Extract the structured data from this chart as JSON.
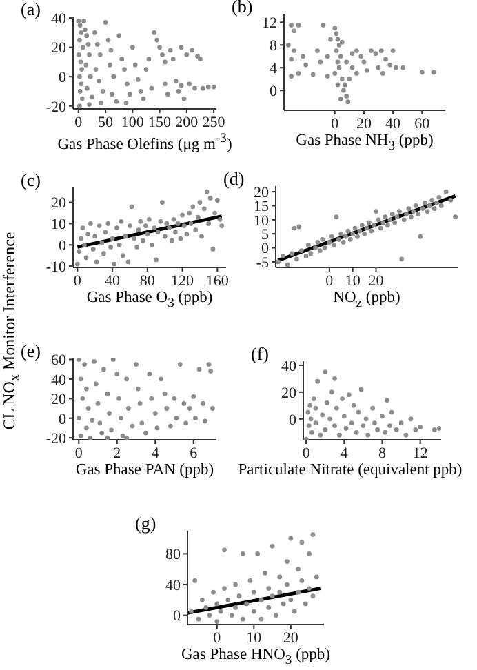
{
  "chart_data": [
    {
      "type": "scatter",
      "title": "(a)",
      "xlabel": "Gas Phase Olefins (μg m$^{-3}$)",
      "xlim": [
        -10,
        255
      ],
      "xticks": [
        0,
        50,
        100,
        150,
        200,
        250
      ],
      "ylim": [
        -22,
        41
      ],
      "yticks": [
        -20,
        0,
        20,
        40
      ],
      "grid": false,
      "legend": false,
      "marker": "circle",
      "series": [
        {
          "color": "#8c8c8c",
          "x": [
            0,
            3,
            5,
            2,
            8,
            1,
            4,
            6,
            2,
            5,
            3,
            7,
            2,
            10,
            12,
            15,
            18,
            20,
            14,
            22,
            16,
            25,
            20,
            30,
            35,
            40,
            32,
            38,
            45,
            42,
            50,
            55,
            60,
            58,
            65,
            62,
            70,
            75,
            80,
            85,
            90,
            95,
            88,
            100,
            105,
            110,
            115,
            120,
            125,
            135,
            140,
            145,
            150,
            155,
            160,
            165,
            170,
            175,
            180,
            185,
            190,
            195,
            200,
            205,
            210,
            215,
            220,
            225,
            230,
            240,
            250,
            130,
            160,
            190
          ],
          "values": [
            38,
            35,
            30,
            25,
            20,
            15,
            10,
            5,
            0,
            -5,
            -10,
            -15,
            -20,
            38,
            32,
            28,
            22,
            15,
            8,
            0,
            -8,
            -14,
            -19,
            30,
            22,
            15,
            5,
            -3,
            -10,
            -18,
            37,
            25,
            18,
            8,
            0,
            -12,
            -17,
            28,
            12,
            5,
            -5,
            -12,
            -18,
            20,
            8,
            -2,
            -10,
            -15,
            5,
            -8,
            30,
            25,
            20,
            15,
            -5,
            -12,
            18,
            12,
            -3,
            -10,
            20,
            -15,
            15,
            -5,
            18,
            -8,
            14,
            12,
            -8,
            -7,
            -7,
            12,
            10,
            -6
          ]
        }
      ]
    },
    {
      "type": "scatter",
      "title": "(b)",
      "xlabel": "Gas Phase NH$_{3}$ (ppb)",
      "xlim": [
        -35,
        76
      ],
      "xticks": [
        0,
        20,
        40,
        60
      ],
      "ylim": [
        -3.5,
        13.5
      ],
      "yticks": [
        0,
        4,
        8,
        12
      ],
      "grid": false,
      "legend": false,
      "marker": "circle",
      "series": [
        {
          "color": "#8c8c8c",
          "x": [
            -30,
            -28,
            -25,
            -32,
            -28,
            -22,
            -30,
            -20,
            -25,
            -30,
            -15,
            -10,
            -12,
            -8,
            -5,
            -5,
            -3,
            0,
            1,
            2,
            3,
            1,
            4,
            2,
            3,
            0,
            5,
            2,
            6,
            8,
            9,
            4,
            7,
            10,
            5,
            8,
            12,
            15,
            18,
            20,
            22,
            25,
            28,
            30,
            32,
            35,
            33,
            38,
            40,
            42,
            47,
            60,
            68,
            12,
            15
          ],
          "values": [
            11.5,
            10.5,
            11.5,
            8,
            7,
            6,
            5.5,
            4.5,
            3,
            2.5,
            2.8,
            5,
            7,
            11.5,
            6,
            2.5,
            9,
            11,
            10,
            9,
            8,
            7,
            6,
            5,
            4,
            3,
            2,
            1,
            0,
            -1,
            -2,
            -1.5,
            1,
            2,
            8.5,
            5,
            6.5,
            7,
            6,
            5,
            3.5,
            7,
            6.5,
            4,
            7,
            5.5,
            3,
            4.5,
            7,
            4,
            4,
            3.2,
            3.2,
            4,
            3
          ]
        }
      ]
    },
    {
      "type": "scatter",
      "title": "(c)",
      "xlabel": "Gas Phase O$_{3}$ (ppb)",
      "ylabel": "CL NO$_{x}$ Monitor Interference",
      "xlim": [
        -5,
        170
      ],
      "xticks": [
        0,
        40,
        80,
        120,
        160
      ],
      "ylim": [
        -10.6,
        27
      ],
      "yticks": [
        -10,
        0,
        10,
        20
      ],
      "grid": false,
      "legend": false,
      "marker": "circle",
      "series": [
        {
          "color": "#8c8c8c",
          "x": [
            0,
            2,
            4,
            6,
            8,
            10,
            12,
            15,
            18,
            20,
            22,
            25,
            28,
            30,
            32,
            35,
            38,
            40,
            42,
            45,
            48,
            50,
            52,
            55,
            58,
            60,
            62,
            65,
            68,
            70,
            72,
            75,
            78,
            80,
            82,
            85,
            88,
            90,
            92,
            95,
            97,
            100,
            102,
            105,
            108,
            110,
            112,
            115,
            118,
            120,
            122,
            125,
            128,
            130,
            132,
            135,
            138,
            140,
            142,
            145,
            148,
            150,
            152,
            155,
            157,
            160,
            163,
            165
          ],
          "values": [
            -9,
            -3,
            3,
            8,
            0,
            -6,
            5,
            10,
            -2,
            4,
            -8,
            9,
            1,
            -4,
            6,
            10,
            -1,
            3,
            -9,
            8,
            0,
            11,
            -5,
            4,
            -8,
            9,
            18,
            3,
            -1,
            7,
            11,
            2,
            9,
            5,
            12,
            0,
            8,
            -7,
            6,
            11,
            20,
            4,
            10,
            8,
            2,
            12,
            6,
            10,
            3,
            14,
            9,
            5,
            15,
            10,
            18,
            7,
            13,
            20,
            4,
            17,
            25,
            10,
            22,
            -2,
            15,
            21,
            12,
            9
          ]
        },
        {
          "type": "line",
          "color": "#000000",
          "marker": "none",
          "x": [
            0,
            165
          ],
          "values": [
            -1,
            13.5
          ]
        }
      ]
    },
    {
      "type": "scatter",
      "title": "(d)",
      "xlabel": "NO$_{z}$ (ppb)",
      "xlim": [
        -23,
        55
      ],
      "xticks": [
        0,
        10,
        20
      ],
      "ylim": [
        -7,
        22
      ],
      "yticks": [
        -5,
        0,
        5,
        10,
        15,
        20
      ],
      "grid": false,
      "legend": false,
      "marker": "circle",
      "series": [
        {
          "color": "#8c8c8c",
          "x": [
            -22,
            -20,
            -18,
            -16,
            -15,
            -13,
            -14,
            -12,
            -10,
            -9,
            -8,
            -6,
            -5,
            -4,
            -3,
            -2,
            0,
            1,
            2,
            3,
            4,
            5,
            6,
            7,
            8,
            9,
            10,
            11,
            12,
            13,
            14,
            15,
            16,
            17,
            18,
            19,
            20,
            21,
            22,
            23,
            24,
            25,
            26,
            27,
            28,
            29,
            30,
            31,
            32,
            33,
            34,
            35,
            36,
            37,
            38,
            39,
            40,
            41,
            42,
            43,
            44,
            45,
            46,
            47,
            48,
            50,
            52,
            54
          ],
          "values": [
            -5,
            -3,
            -6,
            -2,
            7,
            7.5,
            -4,
            -1,
            -3,
            1,
            -2,
            0,
            2,
            -1,
            3,
            0,
            2,
            4,
            1,
            11,
            3,
            5,
            2,
            4,
            6,
            3,
            5,
            7,
            4,
            6,
            8,
            5,
            7,
            9,
            6,
            8,
            13,
            10,
            7,
            9,
            11,
            8,
            10,
            12,
            9,
            11,
            13,
            -4,
            10,
            12,
            14,
            11,
            13,
            15,
            12,
            4,
            14,
            16,
            13,
            15,
            17,
            14,
            16,
            18,
            15,
            20,
            17,
            11
          ]
        },
        {
          "type": "line",
          "color": "#000000",
          "marker": "none",
          "x": [
            -22,
            54
          ],
          "values": [
            -4.5,
            18.5
          ]
        }
      ]
    },
    {
      "type": "scatter",
      "title": "(e)",
      "xlabel": "Gas Phase PAN (ppb)",
      "xlim": [
        -0.3,
        7.2
      ],
      "xticks": [
        0,
        2,
        4,
        6
      ],
      "ylim": [
        -22,
        61
      ],
      "yticks": [
        -20,
        0,
        20,
        40,
        60
      ],
      "grid": false,
      "legend": false,
      "marker": "circle",
      "series": [
        {
          "color": "#8c8c8c",
          "x": [
            0,
            0.1,
            0.2,
            0,
            0.1,
            0.3,
            0.4,
            0.5,
            0.4,
            0.6,
            0.8,
            0.9,
            1,
            1.1,
            1.2,
            1.3,
            1.5,
            1.6,
            1.7,
            1.8,
            2,
            2.1,
            2.2,
            2.3,
            2.5,
            2.6,
            2.8,
            3,
            3.1,
            3.2,
            3.3,
            3.5,
            3.7,
            3.8,
            4,
            4.1,
            4.3,
            4.5,
            4.6,
            4.8,
            5,
            5.1,
            5.3,
            5.5,
            5.6,
            5.8,
            6,
            6.1,
            6.3,
            6.5,
            6.6,
            6.8,
            7,
            6.9,
            1.5,
            2.5,
            0.7
          ],
          "values": [
            60,
            40,
            20,
            0,
            -18,
            55,
            30,
            10,
            -10,
            -20,
            58,
            35,
            15,
            -5,
            -15,
            50,
            25,
            5,
            -12,
            60,
            45,
            20,
            0,
            -18,
            40,
            10,
            -8,
            55,
            30,
            15,
            -5,
            -15,
            45,
            20,
            5,
            -10,
            40,
            25,
            10,
            -8,
            20,
            0,
            55,
            15,
            -5,
            10,
            22,
            0,
            50,
            15,
            -3,
            55,
            10,
            48,
            -20,
            -20,
            -2
          ]
        }
      ]
    },
    {
      "type": "scatter",
      "title": "(f)",
      "xlabel": "Particulate Nitrate (equivalent ppb)",
      "xlim": [
        -0.3,
        14.2
      ],
      "xticks": [
        0,
        4,
        8,
        12
      ],
      "ylim": [
        -15.5,
        43
      ],
      "yticks": [
        0,
        20,
        40
      ],
      "grid": false,
      "legend": false,
      "marker": "circle",
      "series": [
        {
          "color": "#8c8c8c",
          "x": [
            0,
            0.2,
            0.3,
            0.4,
            0.5,
            0.6,
            0.8,
            1,
            1.2,
            1,
            1.5,
            1.7,
            2,
            2,
            2.2,
            2.5,
            2.7,
            3,
            3,
            3.2,
            3.5,
            3.8,
            4,
            4.2,
            4.5,
            4.8,
            5,
            5.3,
            5.5,
            5.8,
            6,
            6.3,
            6.5,
            7,
            7.2,
            7.5,
            8,
            8.3,
            8.5,
            8.8,
            9,
            9.5,
            10,
            10.5,
            11,
            11.5,
            12,
            13.5,
            14
          ],
          "values": [
            -15,
            5,
            -5,
            10,
            0,
            -10,
            15,
            -3,
            28,
            8,
            -12,
            3,
            35,
            -8,
            12,
            0,
            20,
            30,
            -5,
            8,
            -12,
            15,
            2,
            -7,
            18,
            -3,
            10,
            -10,
            5,
            22,
            -5,
            0,
            -12,
            8,
            -3,
            -8,
            2,
            -10,
            14,
            -5,
            5,
            -8,
            -3,
            -12,
            0,
            -8,
            -6,
            -8,
            -7
          ]
        }
      ]
    },
    {
      "type": "scatter",
      "title": "(g)",
      "xlabel": "Gas Phase HNO$_{3}$ (ppb)",
      "xlim": [
        -8,
        29
      ],
      "xticks": [
        0,
        10,
        20
      ],
      "ylim": [
        -12,
        110
      ],
      "yticks": [
        0,
        40,
        80
      ],
      "grid": false,
      "legend": false,
      "marker": "circle",
      "series": [
        {
          "color": "#8c8c8c",
          "x": [
            -7,
            -6,
            -5,
            -4,
            -3,
            -2,
            -1,
            0,
            0,
            1,
            2,
            2,
            3,
            4,
            5,
            5,
            6,
            7,
            7,
            8,
            9,
            10,
            10,
            11,
            12,
            12,
            13,
            14,
            14,
            15,
            15,
            16,
            17,
            17,
            18,
            19,
            19,
            20,
            20,
            21,
            22,
            22,
            23,
            23,
            24,
            25,
            25,
            26,
            27,
            26
          ],
          "values": [
            5,
            45,
            -5,
            20,
            10,
            0,
            30,
            15,
            -8,
            5,
            85,
            35,
            20,
            0,
            40,
            10,
            25,
            -5,
            80,
            15,
            45,
            5,
            30,
            80,
            20,
            -5,
            55,
            10,
            35,
            90,
            25,
            0,
            50,
            30,
            15,
            70,
            40,
            100,
            20,
            5,
            60,
            30,
            95,
            45,
            15,
            80,
            35,
            25,
            50,
            105
          ]
        },
        {
          "type": "line",
          "color": "#000000",
          "marker": "none",
          "x": [
            -8,
            28
          ],
          "values": [
            3,
            35
          ]
        }
      ]
    }
  ]
}
